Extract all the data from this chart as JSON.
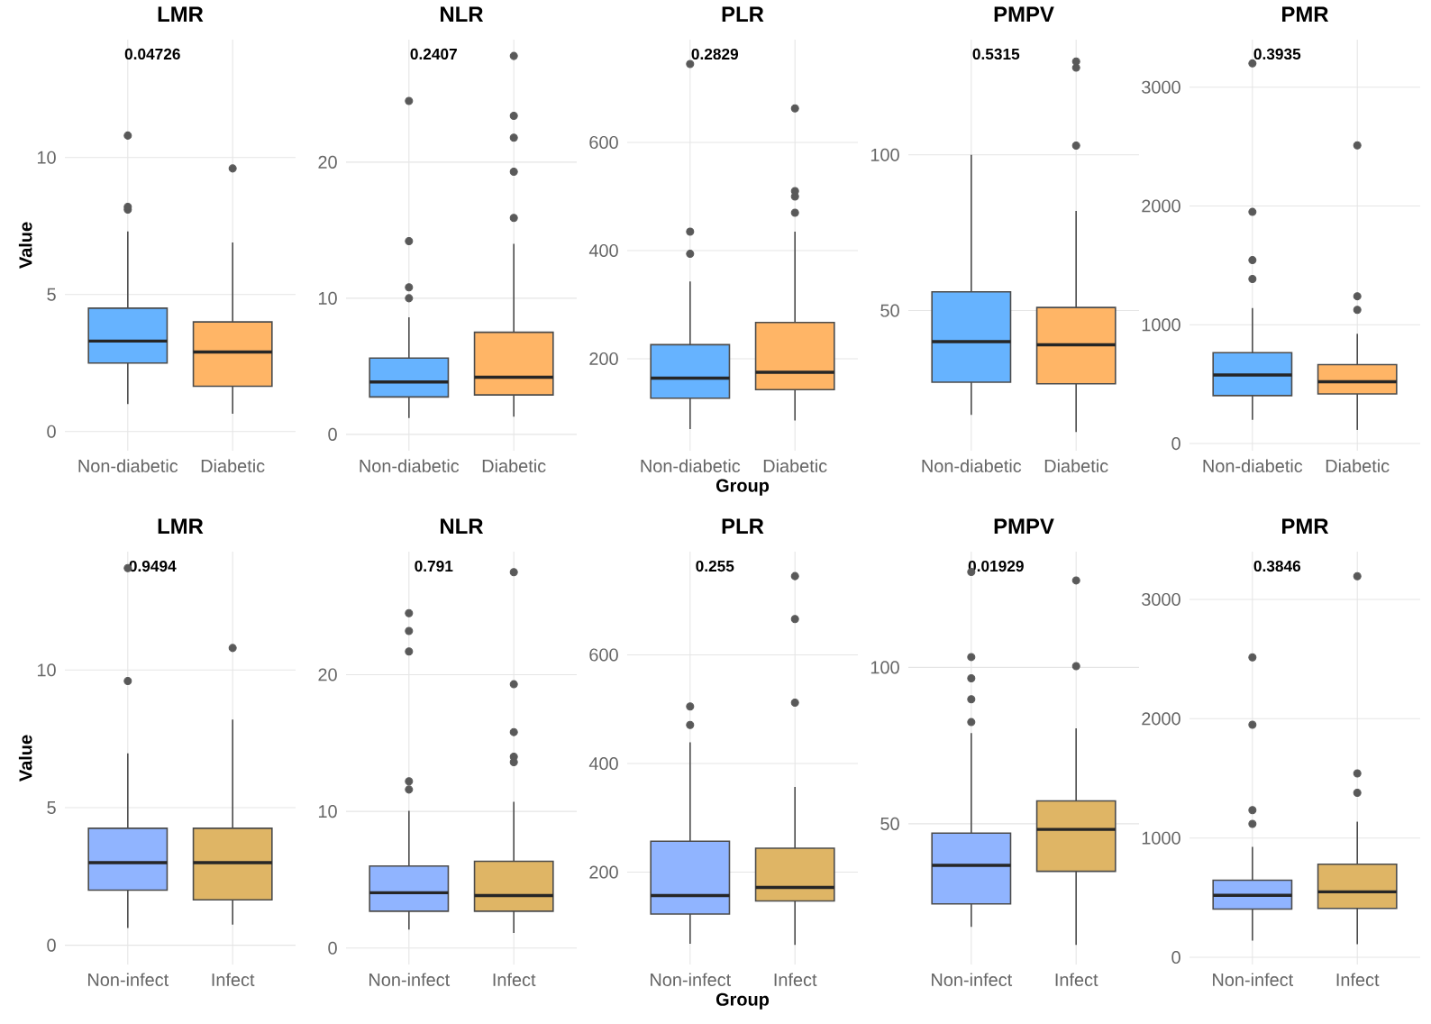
{
  "chart_data": [
    {
      "type": "box",
      "title": "LMR",
      "ylabel": "Value",
      "categories": [
        "Non-diabetic",
        "Diabetic"
      ],
      "colors": [
        "#66b3ff",
        "#ffb566"
      ],
      "boxes": [
        {
          "low": 1.0,
          "q1": 2.5,
          "median": 3.3,
          "q3": 4.5,
          "high": 7.3,
          "outliers": [
            8.1,
            8.2,
            10.8
          ]
        },
        {
          "low": 0.65,
          "q1": 1.65,
          "median": 2.9,
          "q3": 4.0,
          "high": 6.9,
          "outliers": [
            9.6
          ]
        }
      ],
      "ylim": [
        -0.7,
        14.3
      ],
      "yticks": [
        0,
        5,
        10
      ],
      "annotations": [
        "0.04726"
      ],
      "grid": true
    },
    {
      "type": "box",
      "title": "NLR",
      "categories": [
        "Non-diabetic",
        "Diabetic"
      ],
      "colors": [
        "#66b3ff",
        "#ffb566"
      ],
      "boxes": [
        {
          "low": 1.2,
          "q1": 2.75,
          "median": 3.85,
          "q3": 5.6,
          "high": 8.6,
          "outliers": [
            10.0,
            10.8,
            14.2,
            24.5
          ]
        },
        {
          "low": 1.3,
          "q1": 2.9,
          "median": 4.2,
          "q3": 7.5,
          "high": 14.0,
          "outliers": [
            15.9,
            19.3,
            21.8,
            23.4,
            27.8
          ]
        }
      ],
      "ylim": [
        -1.2,
        29
      ],
      "yticks": [
        0,
        10,
        20
      ],
      "annotations": [
        "0.2407"
      ],
      "grid": true
    },
    {
      "type": "box",
      "title": "PLR",
      "xlabel": "Group",
      "categories": [
        "Non-diabetic",
        "Diabetic"
      ],
      "colors": [
        "#66b3ff",
        "#ffb566"
      ],
      "boxes": [
        {
          "low": 70,
          "q1": 127,
          "median": 164,
          "q3": 226,
          "high": 343,
          "outliers": [
            394,
            435,
            745
          ]
        },
        {
          "low": 86,
          "q1": 143,
          "median": 175,
          "q3": 267,
          "high": 435,
          "outliers": [
            470,
            500,
            510,
            663
          ]
        }
      ],
      "ylim": [
        30,
        790
      ],
      "yticks": [
        200,
        400,
        600
      ],
      "annotations": [
        "0.2829"
      ],
      "grid": true
    },
    {
      "type": "box",
      "title": "PMPV",
      "categories": [
        "Non-diabetic",
        "Diabetic"
      ],
      "colors": [
        "#66b3ff",
        "#ffb566"
      ],
      "boxes": [
        {
          "low": 16.5,
          "q1": 27,
          "median": 40,
          "q3": 56,
          "high": 100
        },
        {
          "low": 11,
          "q1": 26.5,
          "median": 39,
          "q3": 51,
          "high": 82,
          "outliers": [
            103,
            128,
            130
          ]
        }
      ],
      "ylim": [
        5,
        137
      ],
      "yticks": [
        50,
        100
      ],
      "annotations": [
        "0.5315"
      ],
      "grid": true
    },
    {
      "type": "box",
      "title": "PMR",
      "categories": [
        "Non-diabetic",
        "Diabetic"
      ],
      "colors": [
        "#66b3ff",
        "#ffb566"
      ],
      "boxes": [
        {
          "low": 200,
          "q1": 404,
          "median": 577,
          "q3": 765,
          "high": 1140,
          "outliers": [
            1385,
            1544,
            1950,
            3200
          ]
        },
        {
          "low": 115,
          "q1": 418,
          "median": 520,
          "q3": 664,
          "high": 924,
          "outliers": [
            1125,
            1240,
            2510
          ]
        }
      ],
      "ylim": [
        -60,
        3400
      ],
      "yticks": [
        0,
        1000,
        2000,
        3000
      ],
      "annotations": [
        "0.3935"
      ],
      "grid": true
    },
    {
      "type": "box",
      "title": "LMR",
      "ylabel": "Value",
      "categories": [
        "Non-infect",
        "Infect"
      ],
      "colors": [
        "#90b4ff",
        "#dfb565"
      ],
      "boxes": [
        {
          "low": 0.63,
          "q1": 2.0,
          "median": 3.0,
          "q3": 4.25,
          "high": 6.97,
          "outliers": [
            9.6,
            13.7
          ]
        },
        {
          "low": 0.75,
          "q1": 1.65,
          "median": 3.0,
          "q3": 4.25,
          "high": 8.2,
          "outliers": [
            10.8
          ]
        }
      ],
      "ylim": [
        -0.7,
        14.3
      ],
      "yticks": [
        0,
        5,
        10
      ],
      "annotations": [
        "0.9494"
      ],
      "grid": true
    },
    {
      "type": "box",
      "title": "NLR",
      "categories": [
        "Non-infect",
        "Infect"
      ],
      "colors": [
        "#90b4ff",
        "#dfb565"
      ],
      "boxes": [
        {
          "low": 1.35,
          "q1": 2.7,
          "median": 4.05,
          "q3": 6.0,
          "high": 10.05,
          "outliers": [
            11.6,
            12.2,
            21.7,
            23.2,
            24.5
          ]
        },
        {
          "low": 1.1,
          "q1": 2.7,
          "median": 3.85,
          "q3": 6.35,
          "high": 10.7,
          "outliers": [
            13.6,
            14.0,
            15.8,
            19.3,
            27.5
          ]
        }
      ],
      "ylim": [
        -1.2,
        29
      ],
      "yticks": [
        0,
        10,
        20
      ],
      "annotations": [
        "0.791"
      ],
      "grid": true
    },
    {
      "type": "box",
      "title": "PLR",
      "xlabel": "Group",
      "categories": [
        "Non-infect",
        "Infect"
      ],
      "colors": [
        "#90b4ff",
        "#dfb565"
      ],
      "boxes": [
        {
          "low": 68,
          "q1": 123,
          "median": 157,
          "q3": 257,
          "high": 439,
          "outliers": [
            471,
            505
          ]
        },
        {
          "low": 66,
          "q1": 147,
          "median": 172,
          "q3": 244,
          "high": 357,
          "outliers": [
            512,
            666,
            745
          ]
        }
      ],
      "ylim": [
        30,
        790
      ],
      "yticks": [
        200,
        400,
        600
      ],
      "annotations": [
        "0.255"
      ],
      "grid": true
    },
    {
      "type": "box",
      "title": "PMPV",
      "categories": [
        "Non-infect",
        "Infect"
      ],
      "colors": [
        "#90b4ff",
        "#dfb565"
      ],
      "boxes": [
        {
          "low": 17,
          "q1": 24.4,
          "median": 36.7,
          "q3": 47,
          "high": 79,
          "outliers": [
            82.5,
            89.8,
            96.5,
            103.3,
            130.5
          ]
        },
        {
          "low": 11.3,
          "q1": 34.8,
          "median": 48.2,
          "q3": 57.3,
          "high": 80.5,
          "outliers": [
            100.4,
            127.8
          ]
        }
      ],
      "ylim": [
        5,
        137
      ],
      "yticks": [
        50,
        100
      ],
      "annotations": [
        "0.01929"
      ],
      "grid": true
    },
    {
      "type": "box",
      "title": "PMR",
      "categories": [
        "Non-infect",
        "Infect"
      ],
      "colors": [
        "#90b4ff",
        "#dfb565"
      ],
      "boxes": [
        {
          "low": 140,
          "q1": 405,
          "median": 520,
          "q3": 646,
          "high": 925,
          "outliers": [
            1118,
            1234,
            1950,
            2514
          ]
        },
        {
          "low": 110,
          "q1": 410,
          "median": 549,
          "q3": 780,
          "high": 1137,
          "outliers": [
            1379,
            1542,
            3194
          ]
        }
      ],
      "ylim": [
        -60,
        3400
      ],
      "yticks": [
        0,
        1000,
        2000,
        3000
      ],
      "annotations": [
        "0.3846"
      ],
      "grid": true
    }
  ]
}
